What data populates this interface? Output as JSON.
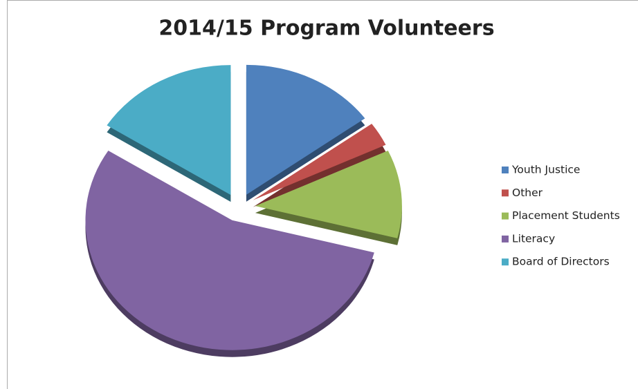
{
  "chart_data": {
    "type": "pie",
    "title": "2014/15 Program Volunteers",
    "categories": [
      "Youth Justice",
      "Other",
      "Placement Students",
      "Literacy",
      "Board of Directors"
    ],
    "values": [
      15,
      3,
      11,
      55,
      16
    ],
    "colors": [
      "#4f81bd",
      "#c0504d",
      "#9bbb59",
      "#8064a2",
      "#4bacc6"
    ],
    "legend": "right"
  }
}
